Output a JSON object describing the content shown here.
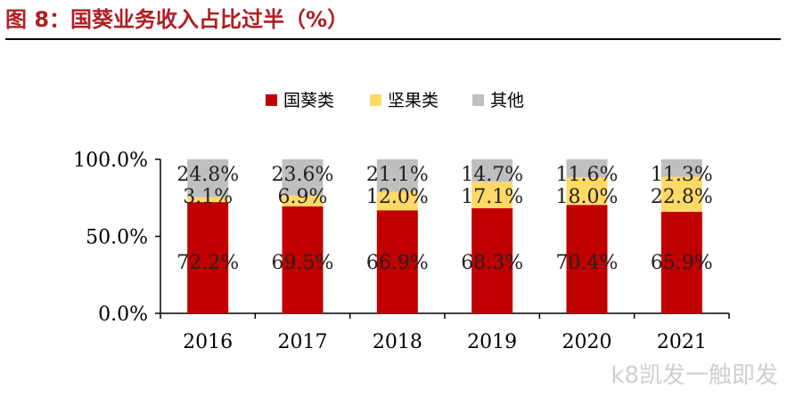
{
  "figure": {
    "title": "图 8：国葵业务收入占比过半（%）"
  },
  "watermark": "k8凯发一触即发",
  "chart_data": {
    "type": "bar",
    "stacked": true,
    "categories": [
      "2016",
      "2017",
      "2018",
      "2019",
      "2020",
      "2021"
    ],
    "series": [
      {
        "name": "国葵类",
        "color": "#c00000",
        "values": [
          72.2,
          69.5,
          66.9,
          68.3,
          70.4,
          65.9
        ]
      },
      {
        "name": "坚果类",
        "color": "#ffd966",
        "values": [
          3.1,
          6.9,
          12.0,
          17.1,
          18.0,
          22.8
        ]
      },
      {
        "name": "其他",
        "color": "#bfbfbf",
        "values": [
          24.8,
          23.6,
          21.1,
          14.7,
          11.6,
          11.3
        ]
      }
    ],
    "ylim": [
      0,
      100
    ],
    "yticks": [
      "0.0%",
      "50.0%",
      "100.0%"
    ],
    "grid": false,
    "legend_position": "top-center",
    "data_labels": true,
    "value_suffix": "%"
  }
}
